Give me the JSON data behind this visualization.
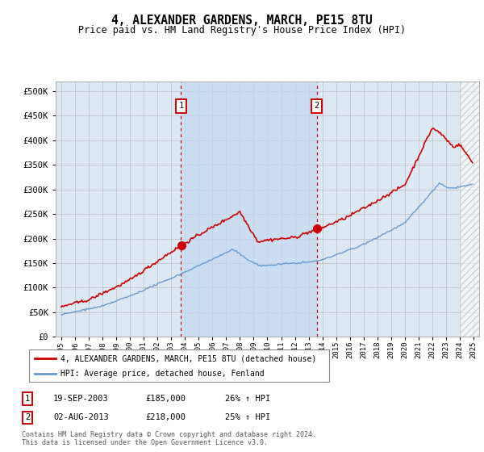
{
  "title": "4, ALEXANDER GARDENS, MARCH, PE15 8TU",
  "subtitle": "Price paid vs. HM Land Registry's House Price Index (HPI)",
  "legend_line1": "4, ALEXANDER GARDENS, MARCH, PE15 8TU (detached house)",
  "legend_line2": "HPI: Average price, detached house, Fenland",
  "annotation1_label": "1",
  "annotation1_date": "19-SEP-2003",
  "annotation1_price": "£185,000",
  "annotation1_hpi": "26% ↑ HPI",
  "annotation2_label": "2",
  "annotation2_date": "02-AUG-2013",
  "annotation2_price": "£218,000",
  "annotation2_hpi": "25% ↑ HPI",
  "footer": "Contains HM Land Registry data © Crown copyright and database right 2024.\nThis data is licensed under the Open Government Licence v3.0.",
  "red_color": "#cc0000",
  "blue_color": "#6699cc",
  "bg_color": "#dce9f5",
  "span_color": "#c5d8ef",
  "grid_color": "#bbbbbb",
  "anno_x1_year": 2003.72,
  "anno_x2_year": 2013.6,
  "ylim_min": 0,
  "ylim_max": 520000,
  "xlim_min": 1994.6,
  "xlim_max": 2025.4
}
